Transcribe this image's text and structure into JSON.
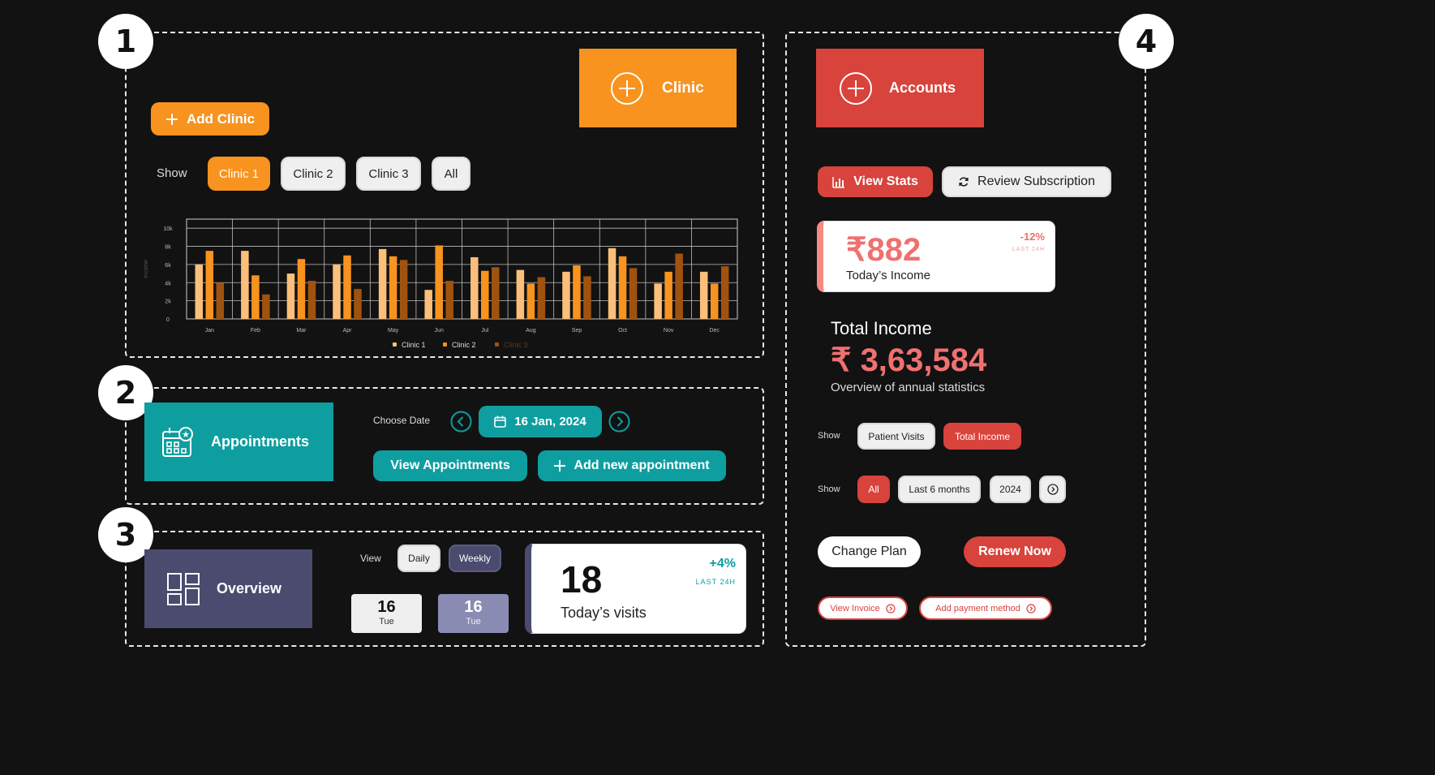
{
  "badges": [
    "1",
    "2",
    "3",
    "4"
  ],
  "section1": {
    "tile_label": "Clinic",
    "add_button": "Add Clinic",
    "show_label": "Show",
    "filters": [
      "Clinic 1",
      "Clinic 2",
      "Clinic 3",
      "All"
    ],
    "active_filter": "Clinic 1"
  },
  "chart_data": {
    "type": "bar",
    "categories": [
      "Jan",
      "Feb",
      "Mar",
      "Apr",
      "May",
      "Jun",
      "Jul",
      "Aug",
      "Sep",
      "Oct",
      "Nov",
      "Dec"
    ],
    "series": [
      {
        "name": "Clinic 1",
        "color": "#fbbf7a",
        "values": [
          6000,
          7500,
          5000,
          6000,
          7700,
          3200,
          6800,
          5400,
          5200,
          7800,
          3900,
          5200
        ]
      },
      {
        "name": "Clinic 2",
        "color": "#f7931e",
        "values": [
          7500,
          4800,
          6600,
          7000,
          6900,
          8100,
          5300,
          3900,
          5900,
          6900,
          5200,
          3900
        ]
      },
      {
        "name": "Clinic 3",
        "color": "#a0520f",
        "values": [
          4000,
          2700,
          4200,
          3300,
          6500,
          4200,
          5700,
          4600,
          4700,
          5600,
          7200,
          5800
        ]
      }
    ],
    "ylabel": "Income",
    "yticks": [
      "0",
      "2k",
      "4k",
      "6k",
      "8k",
      "10k"
    ],
    "ylim": [
      0,
      11000
    ],
    "grid": true,
    "legend": "bottom-center"
  },
  "section2": {
    "tile_label": "Appointments",
    "choose_date_label": "Choose Date",
    "date": "16 Jan, 2024",
    "view_button": "View Appointments",
    "add_button": "Add new appointment"
  },
  "section3": {
    "tile_label": "Overview",
    "view_label": "View",
    "toggle": [
      "Daily",
      "Weekly"
    ],
    "day_cards": [
      {
        "num": "16",
        "day": "Tue"
      },
      {
        "num": "16",
        "day": "Tue"
      }
    ],
    "visits_value": "18",
    "visits_label": "Today’s visits",
    "visits_change": "+4%",
    "visits_period": "LAST 24H"
  },
  "section4": {
    "tile_label": "Accounts",
    "view_stats_button": "View Stats",
    "review_button": "Review Subscription",
    "income_value": "₹882",
    "income_label": "Today’s Income",
    "income_change": "-12%",
    "income_period": "LAST 24H",
    "total_title": "Total Income",
    "total_value": "₹ 3,63,584",
    "total_subtitle": "Overview of annual statistics",
    "show_label_1": "Show",
    "metric_toggle": [
      "Patient Visits",
      "Total Income"
    ],
    "show_label_2": "Show",
    "range_filters": [
      "All",
      "Last 6 months",
      "2024"
    ],
    "change_plan_button": "Change Plan",
    "renew_button": "Renew Now",
    "view_invoice_link": "View Invoice",
    "add_payment_link": "Add payment method"
  },
  "colors": {
    "orange": "#f7931e",
    "red": "#d8433c",
    "teal": "#0e9ea0",
    "slate": "#4a4b6e",
    "background": "#121212"
  }
}
